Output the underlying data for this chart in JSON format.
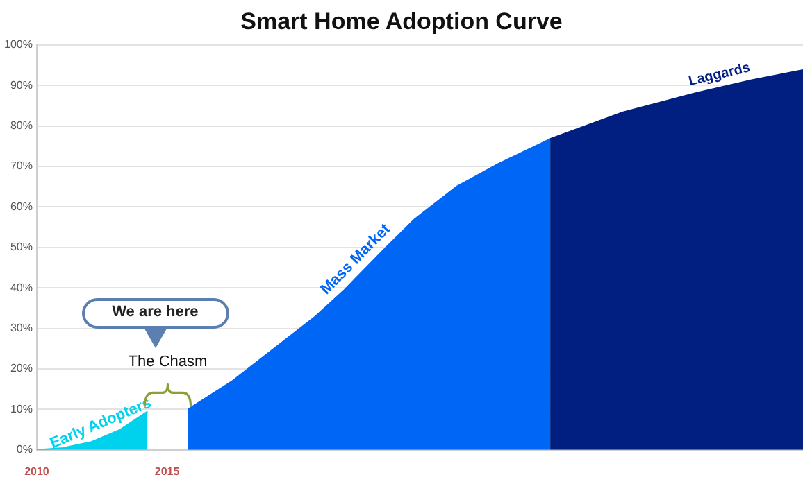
{
  "chart_data": {
    "type": "area",
    "title": "Smart Home Adoption Curve",
    "series": [
      {
        "name": "Early Adopters",
        "color": "#00d2ee",
        "x": [
          2010,
          2011,
          2012.1,
          2013.2,
          2014.25
        ],
        "values": [
          0,
          0.5,
          2,
          5,
          9.5
        ]
      },
      {
        "name": "Mass Market",
        "color": "#0066f5",
        "x": [
          2015.8,
          2017.5,
          2019.1,
          2020.7,
          2021.8,
          2023.4,
          2024.5,
          2026.1,
          2027.7,
          2029.7
        ],
        "values": [
          10,
          17,
          25,
          33,
          39.5,
          50,
          57,
          65,
          70.6,
          76.8
        ]
      },
      {
        "name": "Laggards",
        "color": "#001f80",
        "x": [
          2029.7,
          2032.5,
          2035.2,
          2037.4,
          2039.4
        ],
        "values": [
          76.8,
          83.4,
          88,
          91.3,
          93.8
        ]
      }
    ],
    "annotations": [
      "The Chasm",
      "We are here"
    ],
    "xlim": [
      2010,
      2039.4
    ],
    "xticks": [
      2010,
      2015
    ],
    "ylim": [
      0,
      100
    ],
    "yticks": [
      {
        "value": 0,
        "label": "0%"
      },
      {
        "value": 10,
        "label": "10%"
      },
      {
        "value": 20,
        "label": "20%"
      },
      {
        "value": 30,
        "label": "30%"
      },
      {
        "value": 40,
        "label": "40%"
      },
      {
        "value": 50,
        "label": "50%"
      },
      {
        "value": 60,
        "label": "60%"
      },
      {
        "value": 70,
        "label": "70%"
      },
      {
        "value": 80,
        "label": "80%"
      },
      {
        "value": 90,
        "label": "90%"
      },
      {
        "value": 100,
        "label": "100%"
      }
    ],
    "grid": "y",
    "legend": false,
    "marker": "none"
  }
}
